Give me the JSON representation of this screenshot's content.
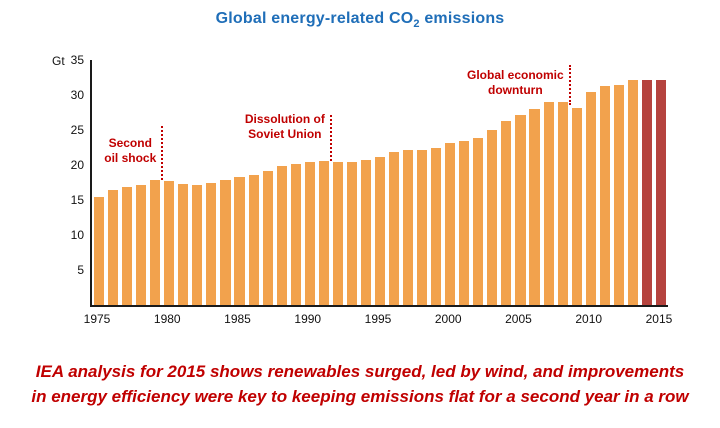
{
  "title": {
    "prefix": "Global energy-related CO",
    "sub": "2",
    "suffix": " emissions",
    "color": "#1F6EB8"
  },
  "caption": {
    "color": "#C00000",
    "line1": "IEA analysis for 2015 shows renewables surged, led by wind, and improvements",
    "line2": "in energy efficiency were key to keeping emissions flat for a second year in a row"
  },
  "chart_data": {
    "type": "bar",
    "title": "Global energy-related CO2 emissions",
    "unit_label": "Gt",
    "ylim": [
      0,
      35
    ],
    "yticks": [
      5,
      10,
      15,
      20,
      25,
      30,
      35
    ],
    "xticks": [
      1975,
      1980,
      1985,
      1990,
      1995,
      2000,
      2005,
      2010,
      2015
    ],
    "grid": false,
    "bar_color": "#F2A24D",
    "highlight_color": "#B5433E",
    "highlight_years": [
      2014,
      2015
    ],
    "annotation_color": "#C00000",
    "x": [
      1975,
      1976,
      1977,
      1978,
      1979,
      1980,
      1981,
      1982,
      1983,
      1984,
      1985,
      1986,
      1987,
      1988,
      1989,
      1990,
      1991,
      1992,
      1993,
      1994,
      1995,
      1996,
      1997,
      1998,
      1999,
      2000,
      2001,
      2002,
      2003,
      2004,
      2005,
      2006,
      2007,
      2008,
      2009,
      2010,
      2011,
      2012,
      2013,
      2014,
      2015
    ],
    "values": [
      15.5,
      16.4,
      16.9,
      17.2,
      17.9,
      17.7,
      17.3,
      17.2,
      17.4,
      17.9,
      18.3,
      18.6,
      19.1,
      19.8,
      20.1,
      20.5,
      20.6,
      20.4,
      20.5,
      20.7,
      21.2,
      21.8,
      22.1,
      22.2,
      22.4,
      23.2,
      23.4,
      23.9,
      25.0,
      26.3,
      27.1,
      28.0,
      29.0,
      29.0,
      28.2,
      30.5,
      31.3,
      31.5,
      32.1,
      32.2,
      32.1
    ],
    "annotations": [
      {
        "label": "Second oil shock",
        "lines": [
          "Second",
          "oil shock"
        ],
        "year": 1980
      },
      {
        "label": "Dissolution of Soviet Union",
        "lines": [
          "Dissolution of",
          "Soviet Union"
        ],
        "year": 1992
      },
      {
        "label": "Global economic downturn",
        "lines": [
          "Global economic",
          "downturn"
        ],
        "year": 2009
      }
    ]
  }
}
